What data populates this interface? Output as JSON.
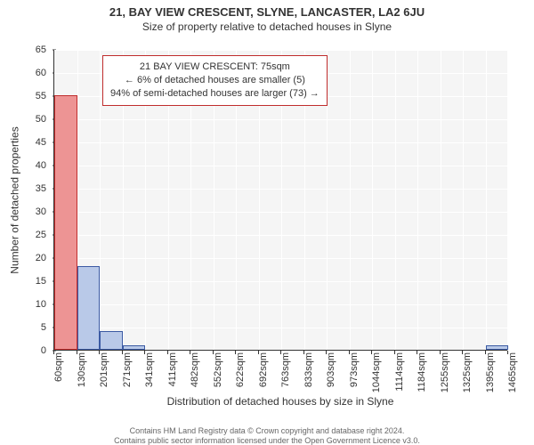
{
  "title": "21, BAY VIEW CRESCENT, SLYNE, LANCASTER, LA2 6JU",
  "subtitle": "Size of property relative to detached houses in Slyne",
  "y_label": "Number of detached properties",
  "x_label": "Distribution of detached houses by size in Slyne",
  "info_line1": "21 BAY VIEW CRESCENT: 75sqm",
  "info_line2": "← 6% of detached houses are smaller (5)",
  "info_line3": "94% of semi-detached houses are larger (73) →",
  "footer_line1": "Contains HM Land Registry data © Crown copyright and database right 2024.",
  "footer_line2": "Contains public sector information licensed under the Open Government Licence v3.0.",
  "chart": {
    "type": "histogram",
    "plot_bg": "#f5f5f5",
    "grid_color": "#ffffff",
    "axis_color": "#333333",
    "text_color": "#333333",
    "ylim": [
      0,
      65
    ],
    "ytick_step": 5,
    "bar_fill": "#b9c9e8",
    "bar_border": "#3b5aa3",
    "highlight_fill": "#ed9494",
    "highlight_border": "#c02d2d",
    "info_border": "#c02d2d",
    "title_fontsize": 13,
    "subtitle_fontsize": 12,
    "label_fontsize": 12,
    "tick_fontsize": 11,
    "x_categories": [
      "60sqm",
      "130sqm",
      "201sqm",
      "271sqm",
      "341sqm",
      "411sqm",
      "482sqm",
      "552sqm",
      "622sqm",
      "692sqm",
      "763sqm",
      "833sqm",
      "903sqm",
      "973sqm",
      "1044sqm",
      "1114sqm",
      "1184sqm",
      "1255sqm",
      "1325sqm",
      "1395sqm",
      "1465sqm"
    ],
    "bins": [
      {
        "height": 55,
        "highlight": true
      },
      {
        "height": 18,
        "highlight": false
      },
      {
        "height": 4,
        "highlight": false
      },
      {
        "height": 1,
        "highlight": false
      },
      {
        "height": 0,
        "highlight": false
      },
      {
        "height": 0,
        "highlight": false
      },
      {
        "height": 0,
        "highlight": false
      },
      {
        "height": 0,
        "highlight": false
      },
      {
        "height": 0,
        "highlight": false
      },
      {
        "height": 0,
        "highlight": false
      },
      {
        "height": 0,
        "highlight": false
      },
      {
        "height": 0,
        "highlight": false
      },
      {
        "height": 0,
        "highlight": false
      },
      {
        "height": 0,
        "highlight": false
      },
      {
        "height": 0,
        "highlight": false
      },
      {
        "height": 0,
        "highlight": false
      },
      {
        "height": 0,
        "highlight": false
      },
      {
        "height": 0,
        "highlight": false
      },
      {
        "height": 0,
        "highlight": false
      },
      {
        "height": 1,
        "highlight": false
      }
    ]
  }
}
